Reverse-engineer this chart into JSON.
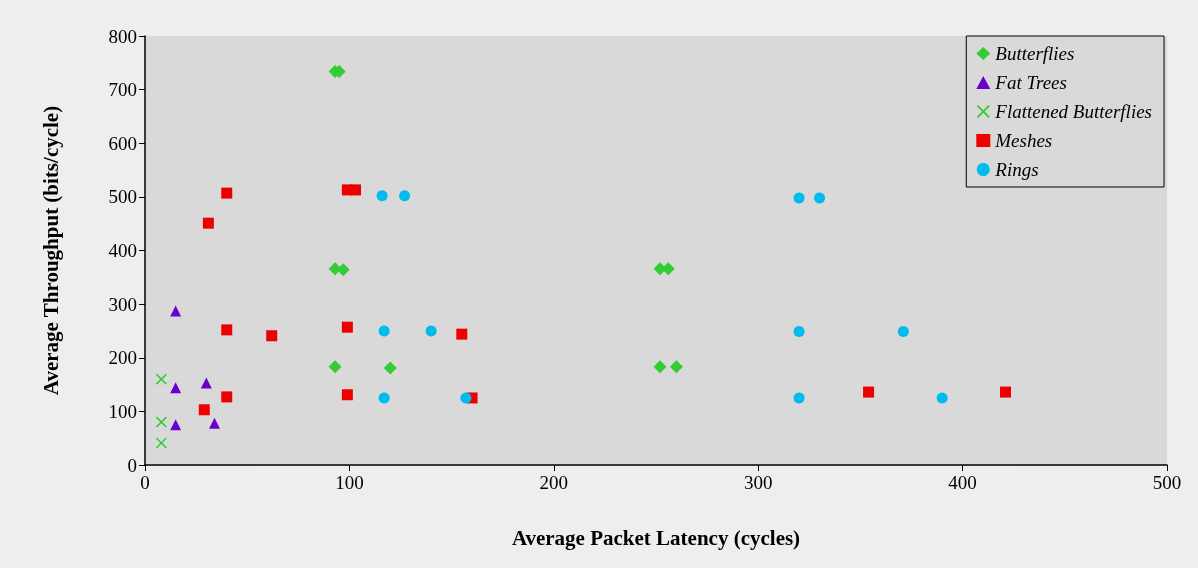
{
  "chart_data": {
    "type": "scatter",
    "xlabel": "Average Packet Latency (cycles)",
    "ylabel": "Average Throughput (bits/cycle)",
    "xlim": [
      0,
      500
    ],
    "xticks": [
      0,
      100,
      200,
      300,
      400,
      500
    ],
    "ylim": [
      0,
      800
    ],
    "yticks": [
      0,
      100,
      200,
      300,
      400,
      500,
      600,
      700,
      800
    ],
    "grid": false,
    "legend": "top right",
    "series": [
      {
        "name": "Butterflies",
        "color": "#33cc33",
        "marker": "diamond",
        "x": [
          93,
          95,
          93,
          97,
          93,
          120,
          252,
          256,
          252,
          260
        ],
        "values": [
          734,
          734,
          366,
          364,
          183,
          181,
          366,
          366,
          183,
          183
        ]
      },
      {
        "name": "Fat Trees",
        "color": "#6600cc",
        "marker": "triangle",
        "x": [
          15,
          15,
          30,
          15,
          34
        ],
        "values": [
          287,
          144,
          153,
          75,
          78
        ]
      },
      {
        "name": "Flattened Butterflies",
        "color": "#33cc33",
        "marker": "cross",
        "x": [
          8,
          8,
          8
        ],
        "values": [
          160,
          80,
          41
        ]
      },
      {
        "name": "Meshes",
        "color": "#ee0000",
        "marker": "square",
        "x": [
          31,
          40,
          99,
          103,
          40,
          62,
          99,
          155,
          29,
          40,
          99,
          160,
          354,
          421
        ],
        "values": [
          451,
          507,
          513,
          513,
          252,
          241,
          257,
          244,
          103,
          127,
          131,
          125,
          136,
          136
        ]
      },
      {
        "name": "Rings",
        "color": "#00bbee",
        "marker": "circle",
        "x": [
          116,
          127,
          117,
          140,
          157,
          117,
          320,
          330,
          320,
          371,
          320,
          390
        ],
        "values": [
          502,
          502,
          250,
          250,
          125,
          125,
          498,
          498,
          249,
          249,
          125,
          125
        ]
      }
    ]
  }
}
